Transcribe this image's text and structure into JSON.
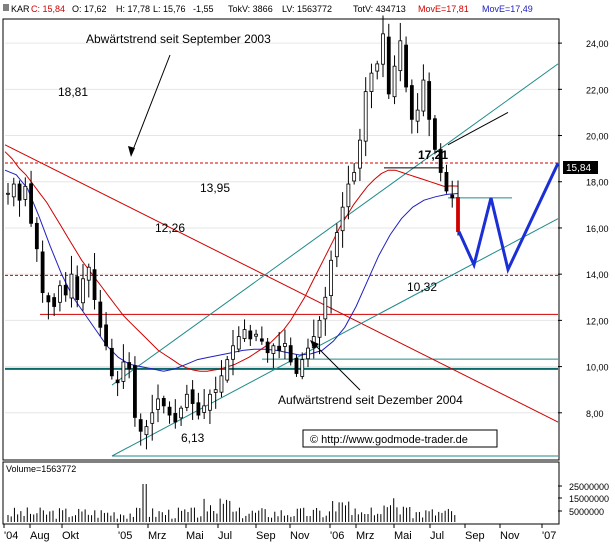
{
  "header": {
    "symbol": "KAR",
    "close": "C: 15,84",
    "open": "O: 17,62",
    "high": "H: 17,78",
    "low": "L: 15,76",
    "change": "-1,55",
    "tokv": "TokV: 3866",
    "lv": "LV: 1563772",
    "totv": "TotV: 434713",
    "move1": "MovE=17,81",
    "move2": "MovE=17,49"
  },
  "volume_label": "Volume=1563772",
  "price_tag": "15,84",
  "watermark": "© http://www.godmode-trader.de",
  "annotations": {
    "downtrend": "Abwärtstrend seit September 2003",
    "uptrend": "Aufwärtstrend seit Dezember 2004",
    "lvl_1881": "18,81",
    "lvl_1395": "13,95",
    "lvl_1226": "12,26",
    "lvl_1032": "10,32",
    "lvl_613": "6,13",
    "lvl_1721": "17,21"
  },
  "chart_data": {
    "type": "candlestick",
    "x_ticks": [
      "'04",
      "Aug",
      "Okt",
      "'05",
      "Mrz",
      "Mai",
      "Jul",
      "Sep",
      "Nov",
      "'06",
      "Mrz",
      "Mai",
      "Jul",
      "Sep",
      "Nov",
      "'07"
    ],
    "y_ticks": [
      "24,00",
      "22,00",
      "20,00",
      "18,00",
      "16,00",
      "14,00",
      "12,00",
      "10,00",
      "8,00"
    ],
    "ylim": [
      6.0,
      25.0
    ],
    "volume_ticks": [
      "25000000",
      "15000000",
      "5000000"
    ],
    "horizontal_levels": [
      18.81,
      13.95,
      12.26,
      10.32,
      9.9,
      6.13
    ],
    "price_series": [
      17.5,
      17.9,
      17.2,
      17.8,
      16.2,
      15.1,
      13.2,
      12.8,
      12.6,
      13.5,
      13.1,
      14.0,
      12.9,
      13.8,
      14.3,
      12.9,
      11.7,
      10.9,
      9.6,
      9.3,
      10.2,
      9.9,
      7.8,
      7.2,
      7.4,
      8.0,
      8.6,
      8.3,
      7.9,
      7.6,
      8.2,
      8.8,
      8.4,
      7.9,
      8.3,
      8.8,
      9.0,
      9.6,
      10.3,
      10.9,
      11.3,
      11.6,
      11.2,
      11.4,
      11.1,
      10.6,
      10.9,
      10.7,
      11.0,
      10.2,
      9.7,
      10.3,
      10.8,
      11.3,
      12.0,
      13.0,
      14.6,
      15.8,
      16.9,
      17.9,
      18.4,
      19.8,
      21.9,
      22.7,
      23.1,
      24.4,
      21.8,
      23.0,
      24.1,
      22.1,
      20.7,
      21.1,
      22.4,
      20.7,
      19.4,
      18.4,
      17.6,
      17.3,
      15.84
    ],
    "move_long_series": [
      19.3,
      19.0,
      18.6,
      18.3,
      17.9,
      17.5,
      17.1,
      16.6,
      16.1,
      15.6,
      15.1,
      14.6,
      14.2,
      13.8,
      13.4,
      13.0,
      12.6,
      12.2,
      11.9,
      11.6,
      11.3,
      11.0,
      10.7,
      10.5,
      10.3,
      10.1,
      9.95,
      9.85,
      9.8,
      9.8,
      9.85,
      9.9,
      10.0,
      10.1,
      10.25,
      10.4,
      10.6,
      10.8,
      11.0,
      11.3,
      11.6,
      12.0,
      12.5,
      13.0,
      13.6,
      14.2,
      14.8,
      15.4,
      16.0,
      16.5,
      17.0,
      17.4,
      17.8,
      18.1,
      18.35,
      18.5,
      18.5,
      18.4,
      18.3,
      18.2,
      18.1,
      18.0,
      17.9,
      17.8,
      17.82,
      17.81
    ],
    "move_short_series": [
      18.5,
      18.3,
      17.7,
      16.5,
      15.2,
      14.0,
      13.0,
      12.3,
      11.6,
      10.9,
      10.4,
      10.1,
      10.0,
      9.9,
      9.8,
      9.9,
      10.1,
      10.3,
      10.4,
      10.5,
      10.6,
      10.7,
      10.75,
      10.75,
      10.7,
      10.6,
      10.5,
      10.55,
      10.7,
      11.1,
      11.7,
      12.6,
      13.7,
      14.8,
      15.7,
      16.4,
      16.9,
      17.2,
      17.35,
      17.45,
      17.49
    ],
    "projection_points": [
      [
        15.84
      ],
      [
        14.4
      ],
      [
        17.3
      ],
      [
        14.2
      ],
      [
        18.8
      ]
    ]
  }
}
